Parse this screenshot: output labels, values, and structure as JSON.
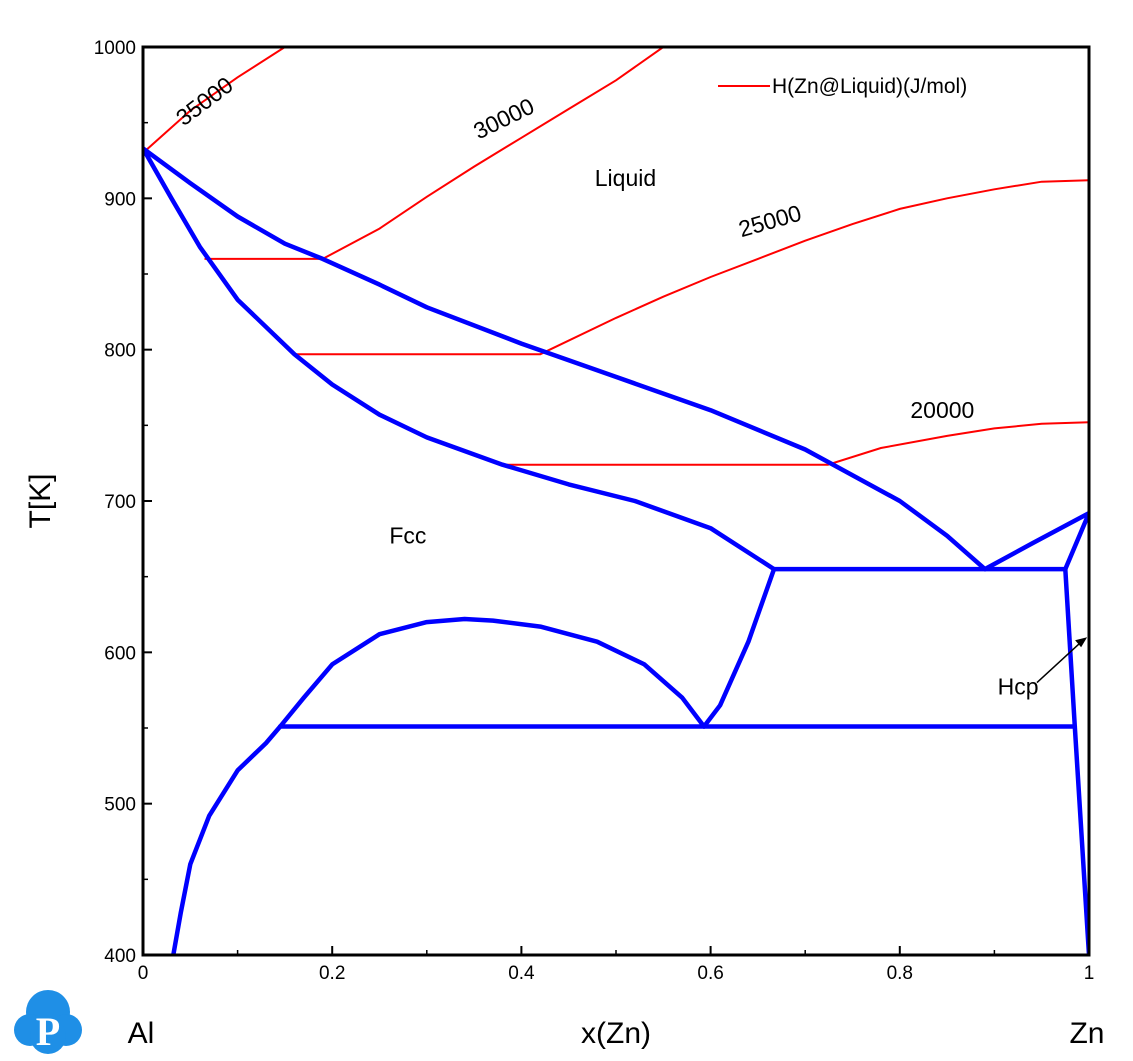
{
  "chart_data": {
    "type": "line",
    "xlabel": "x(Zn)",
    "ylabel": "T[K]",
    "xlim": [
      0,
      1
    ],
    "ylim": [
      400,
      1000
    ],
    "x_ticks": [
      "0",
      "0.2",
      "0.4",
      "0.6",
      "0.8",
      "1"
    ],
    "y_ticks": [
      "400",
      "500",
      "600",
      "700",
      "800",
      "900",
      "1000"
    ],
    "x_end_labels": {
      "left": "Al",
      "right": "Zn"
    },
    "legend": {
      "label": "H(Zn@Liquid)(J/mol)",
      "color": "#ff0000",
      "placement": "top-right"
    },
    "phase_labels": [
      {
        "text": "Liquid",
        "x": 0.51,
        "y": 908
      },
      {
        "text": "Fcc",
        "x": 0.28,
        "y": 672
      },
      {
        "text": "Hcp",
        "x": 0.925,
        "y": 572
      }
    ],
    "phase_boundary_color": "#0000ff",
    "phase_boundaries": [
      {
        "name": "liquidus-left",
        "points": [
          [
            0,
            933
          ],
          [
            0.05,
            910
          ],
          [
            0.1,
            888
          ],
          [
            0.15,
            870
          ],
          [
            0.19,
            860
          ],
          [
            0.25,
            843
          ],
          [
            0.3,
            828
          ],
          [
            0.4,
            804
          ],
          [
            0.5,
            782
          ],
          [
            0.6,
            760
          ],
          [
            0.7,
            734
          ],
          [
            0.8,
            700
          ],
          [
            0.85,
            677
          ],
          [
            0.89,
            655
          ]
        ]
      },
      {
        "name": "liquidus-right",
        "points": [
          [
            0.89,
            655
          ],
          [
            0.94,
            672
          ],
          [
            1,
            692
          ]
        ]
      },
      {
        "name": "fcc-solidus",
        "points": [
          [
            0,
            933
          ],
          [
            0.03,
            900
          ],
          [
            0.06,
            868
          ],
          [
            0.1,
            833
          ],
          [
            0.16,
            797
          ],
          [
            0.2,
            777
          ],
          [
            0.25,
            757
          ],
          [
            0.3,
            742
          ],
          [
            0.38,
            724
          ],
          [
            0.45,
            711
          ],
          [
            0.52,
            700
          ],
          [
            0.6,
            682
          ],
          [
            0.667,
            655
          ]
        ]
      },
      {
        "name": "eutectic-line",
        "points": [
          [
            0.667,
            655
          ],
          [
            0.975,
            655
          ]
        ]
      },
      {
        "name": "hcp-solidus",
        "points": [
          [
            0.975,
            655
          ],
          [
            1,
            692
          ]
        ]
      },
      {
        "name": "hcp-solvus",
        "points": [
          [
            0.975,
            655
          ],
          [
            0.985,
            551
          ],
          [
            1,
            400
          ]
        ]
      },
      {
        "name": "fcc-solvus-right",
        "points": [
          [
            0.667,
            655
          ],
          [
            0.64,
            607
          ],
          [
            0.61,
            565
          ],
          [
            0.593,
            551
          ]
        ]
      },
      {
        "name": "miscibility-gap",
        "points": [
          [
            0.145,
            551
          ],
          [
            0.17,
            570
          ],
          [
            0.2,
            592
          ],
          [
            0.25,
            612
          ],
          [
            0.3,
            620
          ],
          [
            0.34,
            622
          ],
          [
            0.37,
            621
          ],
          [
            0.42,
            617
          ],
          [
            0.48,
            607
          ],
          [
            0.53,
            592
          ],
          [
            0.57,
            570
          ],
          [
            0.593,
            551
          ]
        ]
      },
      {
        "name": "monotectoid-line",
        "points": [
          [
            0.145,
            551
          ],
          [
            0.985,
            551
          ]
        ]
      },
      {
        "name": "fcc-solvus-left",
        "points": [
          [
            0.145,
            551
          ],
          [
            0.13,
            540
          ],
          [
            0.1,
            522
          ],
          [
            0.07,
            492
          ],
          [
            0.05,
            460
          ],
          [
            0.04,
            428
          ],
          [
            0.032,
            400
          ]
        ]
      }
    ],
    "series": [
      {
        "name": "H(Zn@Liquid)(J/mol)",
        "label": "35000",
        "label_pos": {
          "x": 0.07,
          "y": 960,
          "angle": -37
        },
        "points": [
          [
            0,
            930
          ],
          [
            0.05,
            958
          ],
          [
            0.1,
            980
          ],
          [
            0.15,
            1000
          ]
        ]
      },
      {
        "name": "H(Zn@Liquid)(J/mol)",
        "label": "30000",
        "label_pos": {
          "x": 0.385,
          "y": 948,
          "angle": -26
        },
        "points": [
          [
            0.065,
            860
          ],
          [
            0.19,
            860
          ],
          [
            0.25,
            880
          ],
          [
            0.3,
            901
          ],
          [
            0.35,
            921
          ],
          [
            0.4,
            940
          ],
          [
            0.45,
            959
          ],
          [
            0.5,
            978
          ],
          [
            0.55,
            1000
          ]
        ]
      },
      {
        "name": "H(Zn@Liquid)(J/mol)",
        "label": "25000",
        "label_pos": {
          "x": 0.665,
          "y": 880,
          "angle": -16
        },
        "points": [
          [
            0.16,
            797
          ],
          [
            0.42,
            797
          ],
          [
            0.5,
            821
          ],
          [
            0.55,
            835
          ],
          [
            0.6,
            848
          ],
          [
            0.65,
            860
          ],
          [
            0.7,
            872
          ],
          [
            0.75,
            883
          ],
          [
            0.8,
            893
          ],
          [
            0.85,
            900
          ],
          [
            0.9,
            906
          ],
          [
            0.95,
            911
          ],
          [
            1,
            912
          ]
        ]
      },
      {
        "name": "H(Zn@Liquid)(J/mol)",
        "label": "20000",
        "label_pos": {
          "x": 0.845,
          "y": 755,
          "angle": 0
        },
        "points": [
          [
            0.38,
            724
          ],
          [
            0.724,
            724
          ],
          [
            0.78,
            735
          ],
          [
            0.85,
            743
          ],
          [
            0.9,
            748
          ],
          [
            0.95,
            751
          ],
          [
            1,
            752
          ]
        ]
      }
    ]
  }
}
